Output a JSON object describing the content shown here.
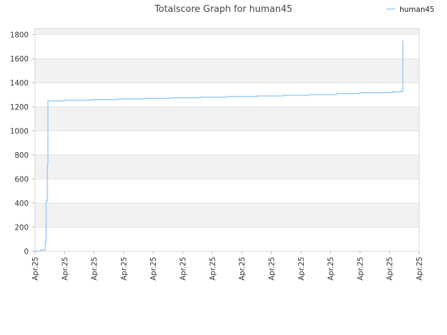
{
  "chart_data": {
    "type": "line",
    "title": "Totalscore Graph for human45",
    "xlabel": "",
    "ylabel": "",
    "legend": {
      "position": "top-right"
    },
    "grid": true,
    "x_tick_labels": [
      "Apr.25",
      "Apr.25",
      "Apr.25",
      "Apr.25",
      "Apr.25",
      "Apr.25",
      "Apr.25",
      "Apr.25",
      "Apr.25",
      "Apr.25",
      "Apr.25",
      "Apr.25",
      "Apr.25",
      "Apr.25"
    ],
    "ylim": [
      0,
      1850
    ],
    "yticks": [
      0,
      200,
      400,
      600,
      800,
      1000,
      1200,
      1400,
      1600,
      1800
    ],
    "series": [
      {
        "name": "human45",
        "color": "#99ccf5",
        "x": [
          0,
          0.2,
          0.25,
          0.35,
          0.38,
          0.39,
          0.42,
          0.43,
          0.44,
          0.44,
          0.55,
          1.0,
          1.9,
          2.8,
          3.7,
          4.6,
          5.6,
          6.5,
          7.5,
          8.4,
          9.3,
          10.2,
          11.0,
          12.1,
          12.4,
          12.45
        ],
        "y": [
          0,
          10,
          10,
          80,
          400,
          420,
          700,
          720,
          730,
          1250,
          1250,
          1255,
          1260,
          1265,
          1270,
          1275,
          1280,
          1285,
          1290,
          1296,
          1302,
          1310,
          1318,
          1325,
          1330,
          1750
        ]
      }
    ]
  }
}
